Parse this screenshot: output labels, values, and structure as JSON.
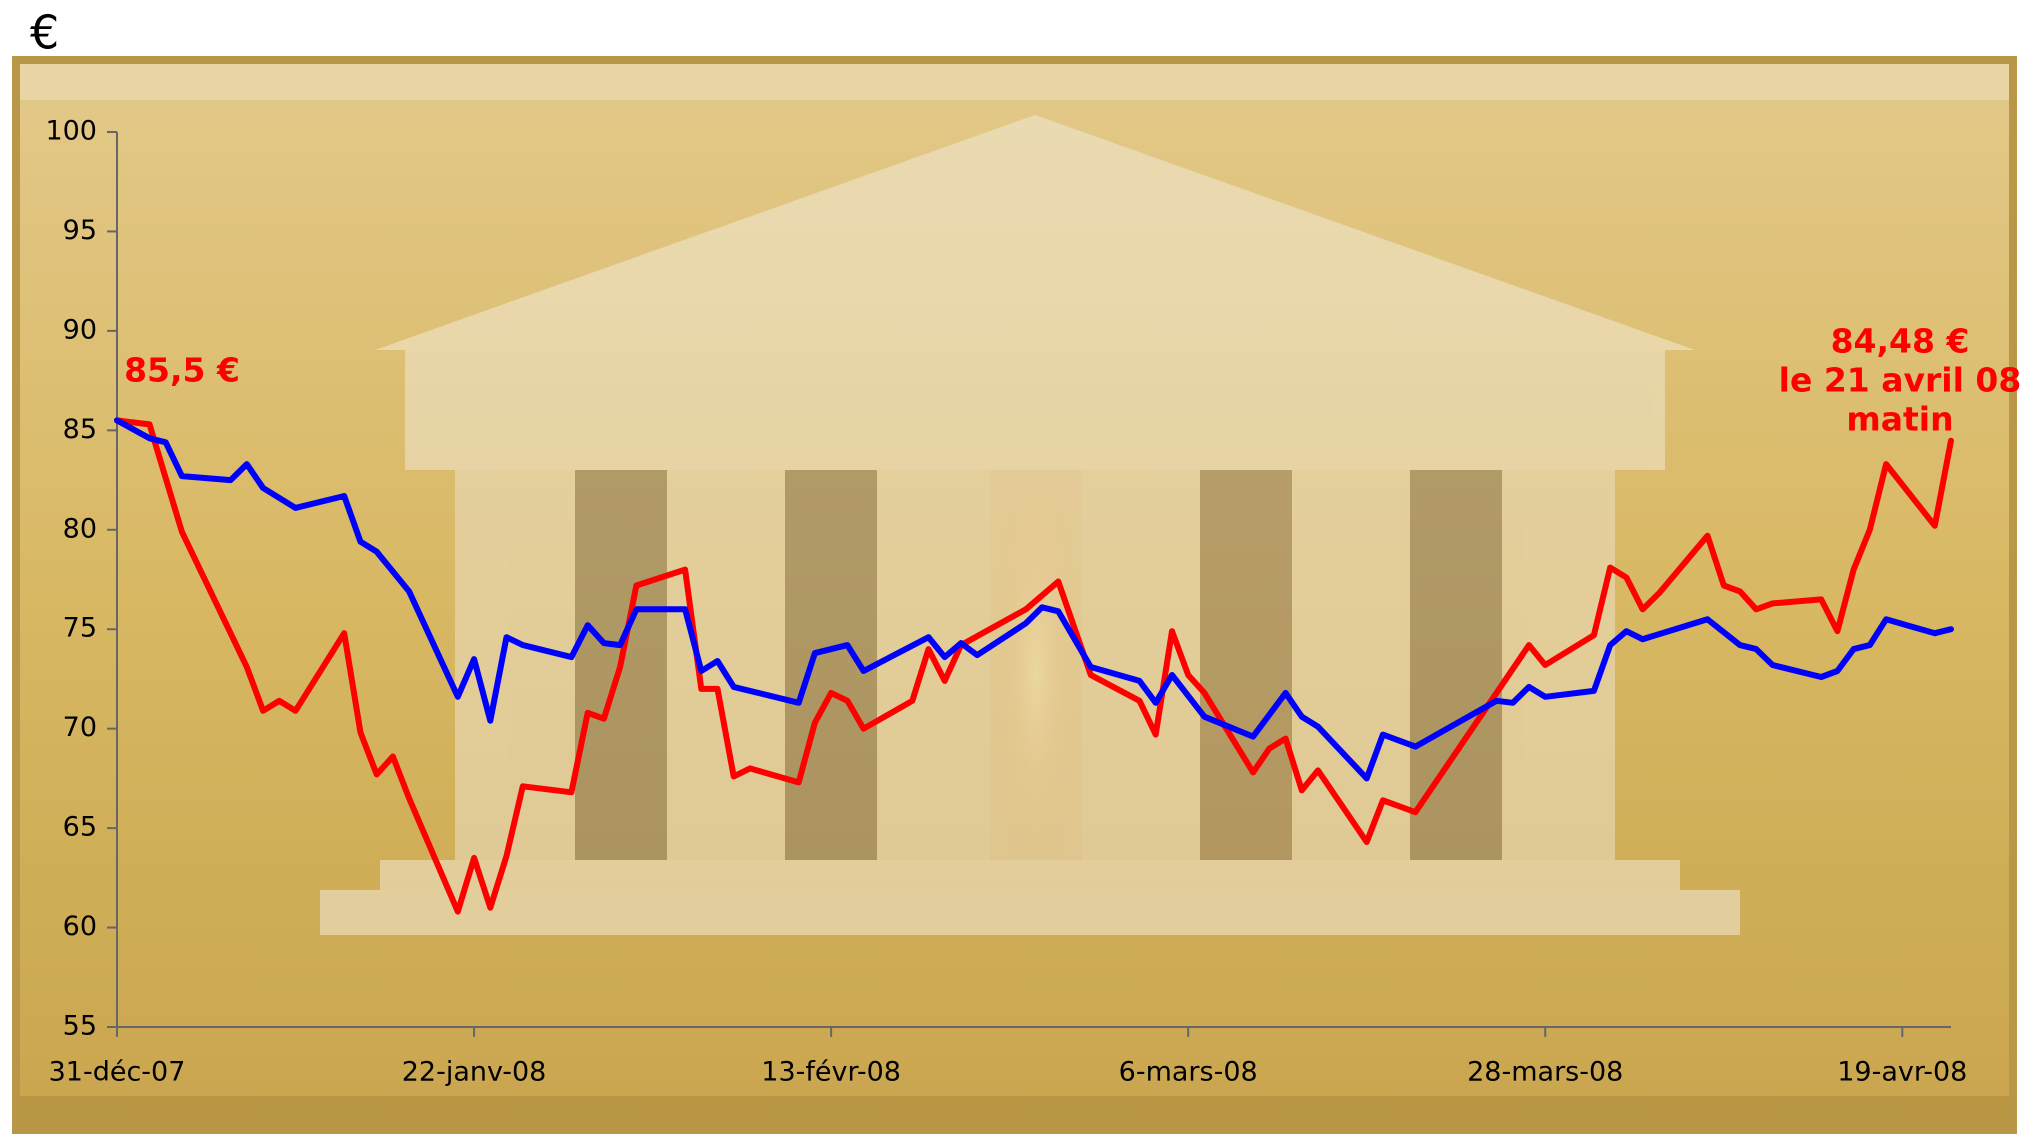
{
  "chart_data": {
    "type": "line",
    "y_label": "€",
    "annotations": [
      "85,5 €",
      "84,48 €",
      "le 21 avril 08",
      "matin"
    ],
    "xlim": [
      "2007-12-31",
      "2008-04-22"
    ],
    "xticks": [
      {
        "value": "2007-12-31",
        "label": "31-déc-07"
      },
      {
        "value": "2008-01-22",
        "label": "22-janv-08"
      },
      {
        "value": "2008-02-13",
        "label": "13-févr-08"
      },
      {
        "value": "2008-03-06",
        "label": "6-mars-08"
      },
      {
        "value": "2008-03-28",
        "label": "28-mars-08"
      },
      {
        "value": "2008-04-19",
        "label": "19-avr-08"
      }
    ],
    "ylim": [
      55,
      100
    ],
    "yticks": [
      55,
      60,
      65,
      70,
      75,
      80,
      85,
      90,
      95,
      100
    ],
    "series": [
      {
        "color": "#ff0000",
        "x": [
          "2007-12-31",
          "2008-01-02",
          "2008-01-04",
          "2008-01-08",
          "2008-01-09",
          "2008-01-10",
          "2008-01-11",
          "2008-01-14",
          "2008-01-15",
          "2008-01-16",
          "2008-01-17",
          "2008-01-18",
          "2008-01-21",
          "2008-01-22",
          "2008-01-23",
          "2008-01-24",
          "2008-01-25",
          "2008-01-28",
          "2008-01-29",
          "2008-01-30",
          "2008-01-31",
          "2008-02-01",
          "2008-02-04",
          "2008-02-05",
          "2008-02-06",
          "2008-02-07",
          "2008-02-08",
          "2008-02-11",
          "2008-02-12",
          "2008-02-13",
          "2008-02-14",
          "2008-02-15",
          "2008-02-18",
          "2008-02-19",
          "2008-02-20",
          "2008-02-21",
          "2008-02-25",
          "2008-02-27",
          "2008-02-29",
          "2008-03-03",
          "2008-03-04",
          "2008-03-05",
          "2008-03-06",
          "2008-03-07",
          "2008-03-10",
          "2008-03-11",
          "2008-03-12",
          "2008-03-13",
          "2008-03-14",
          "2008-03-17",
          "2008-03-18",
          "2008-03-20",
          "2008-03-27",
          "2008-03-28",
          "2008-03-31",
          "2008-04-01",
          "2008-04-02",
          "2008-04-03",
          "2008-04-04",
          "2008-04-07",
          "2008-04-08",
          "2008-04-09",
          "2008-04-10",
          "2008-04-11",
          "2008-04-14",
          "2008-04-15",
          "2008-04-16",
          "2008-04-17",
          "2008-04-18",
          "2008-04-21",
          "2008-04-22"
        ],
        "values": [
          85.5,
          85.3,
          79.9,
          73.1,
          70.9,
          71.4,
          70.9,
          74.8,
          69.8,
          67.7,
          68.6,
          66.5,
          60.8,
          63.5,
          61.0,
          63.6,
          67.1,
          66.8,
          70.8,
          70.5,
          73.1,
          77.2,
          78.0,
          72.0,
          72.0,
          67.6,
          68.0,
          67.3,
          70.3,
          71.8,
          71.4,
          70.0,
          71.4,
          74.0,
          72.4,
          74.2,
          76.0,
          77.4,
          72.7,
          71.4,
          69.7,
          74.9,
          72.7,
          71.8,
          67.8,
          69.0,
          69.5,
          66.9,
          67.9,
          64.3,
          66.4,
          65.8,
          74.2,
          73.2,
          74.7,
          78.1,
          77.6,
          76.0,
          76.8,
          79.7,
          77.2,
          76.9,
          76.0,
          76.3,
          76.5,
          74.9,
          78.0,
          80.0,
          83.3,
          80.2,
          84.48
        ]
      },
      {
        "color": "#0000ff",
        "x": [
          "2007-12-31",
          "2008-01-02",
          "2008-01-03",
          "2008-01-04",
          "2008-01-07",
          "2008-01-08",
          "2008-01-09",
          "2008-01-11",
          "2008-01-14",
          "2008-01-15",
          "2008-01-16",
          "2008-01-18",
          "2008-01-21",
          "2008-01-22",
          "2008-01-23",
          "2008-01-24",
          "2008-01-25",
          "2008-01-28",
          "2008-01-29",
          "2008-01-30",
          "2008-01-31",
          "2008-02-01",
          "2008-02-04",
          "2008-02-05",
          "2008-02-06",
          "2008-02-07",
          "2008-02-11",
          "2008-02-12",
          "2008-02-14",
          "2008-02-15",
          "2008-02-19",
          "2008-02-20",
          "2008-02-21",
          "2008-02-22",
          "2008-02-25",
          "2008-02-26",
          "2008-02-27",
          "2008-02-29",
          "2008-03-03",
          "2008-03-04",
          "2008-03-05",
          "2008-03-07",
          "2008-03-10",
          "2008-03-12",
          "2008-03-13",
          "2008-03-14",
          "2008-03-17",
          "2008-03-18",
          "2008-03-20",
          "2008-03-25",
          "2008-03-26",
          "2008-03-27",
          "2008-03-28",
          "2008-03-31",
          "2008-04-01",
          "2008-04-02",
          "2008-04-03",
          "2008-04-07",
          "2008-04-09",
          "2008-04-10",
          "2008-04-11",
          "2008-04-14",
          "2008-04-15",
          "2008-04-16",
          "2008-04-17",
          "2008-04-18",
          "2008-04-21",
          "2008-04-22"
        ],
        "values": [
          85.5,
          84.6,
          84.4,
          82.7,
          82.5,
          83.3,
          82.1,
          81.1,
          81.7,
          79.4,
          78.9,
          76.9,
          71.6,
          73.5,
          70.4,
          74.6,
          74.2,
          73.6,
          75.2,
          74.3,
          74.2,
          76.0,
          76.0,
          72.9,
          73.4,
          72.1,
          71.3,
          73.8,
          74.2,
          72.9,
          74.6,
          73.6,
          74.3,
          73.7,
          75.3,
          76.1,
          75.9,
          73.1,
          72.4,
          71.3,
          72.7,
          70.6,
          69.6,
          71.8,
          70.6,
          70.1,
          67.5,
          69.7,
          69.1,
          71.4,
          71.3,
          72.1,
          71.6,
          71.9,
          74.2,
          74.9,
          74.5,
          75.5,
          74.2,
          74.0,
          73.2,
          72.6,
          72.9,
          74.0,
          74.2,
          75.5,
          74.8,
          75.0
        ]
      }
    ]
  }
}
